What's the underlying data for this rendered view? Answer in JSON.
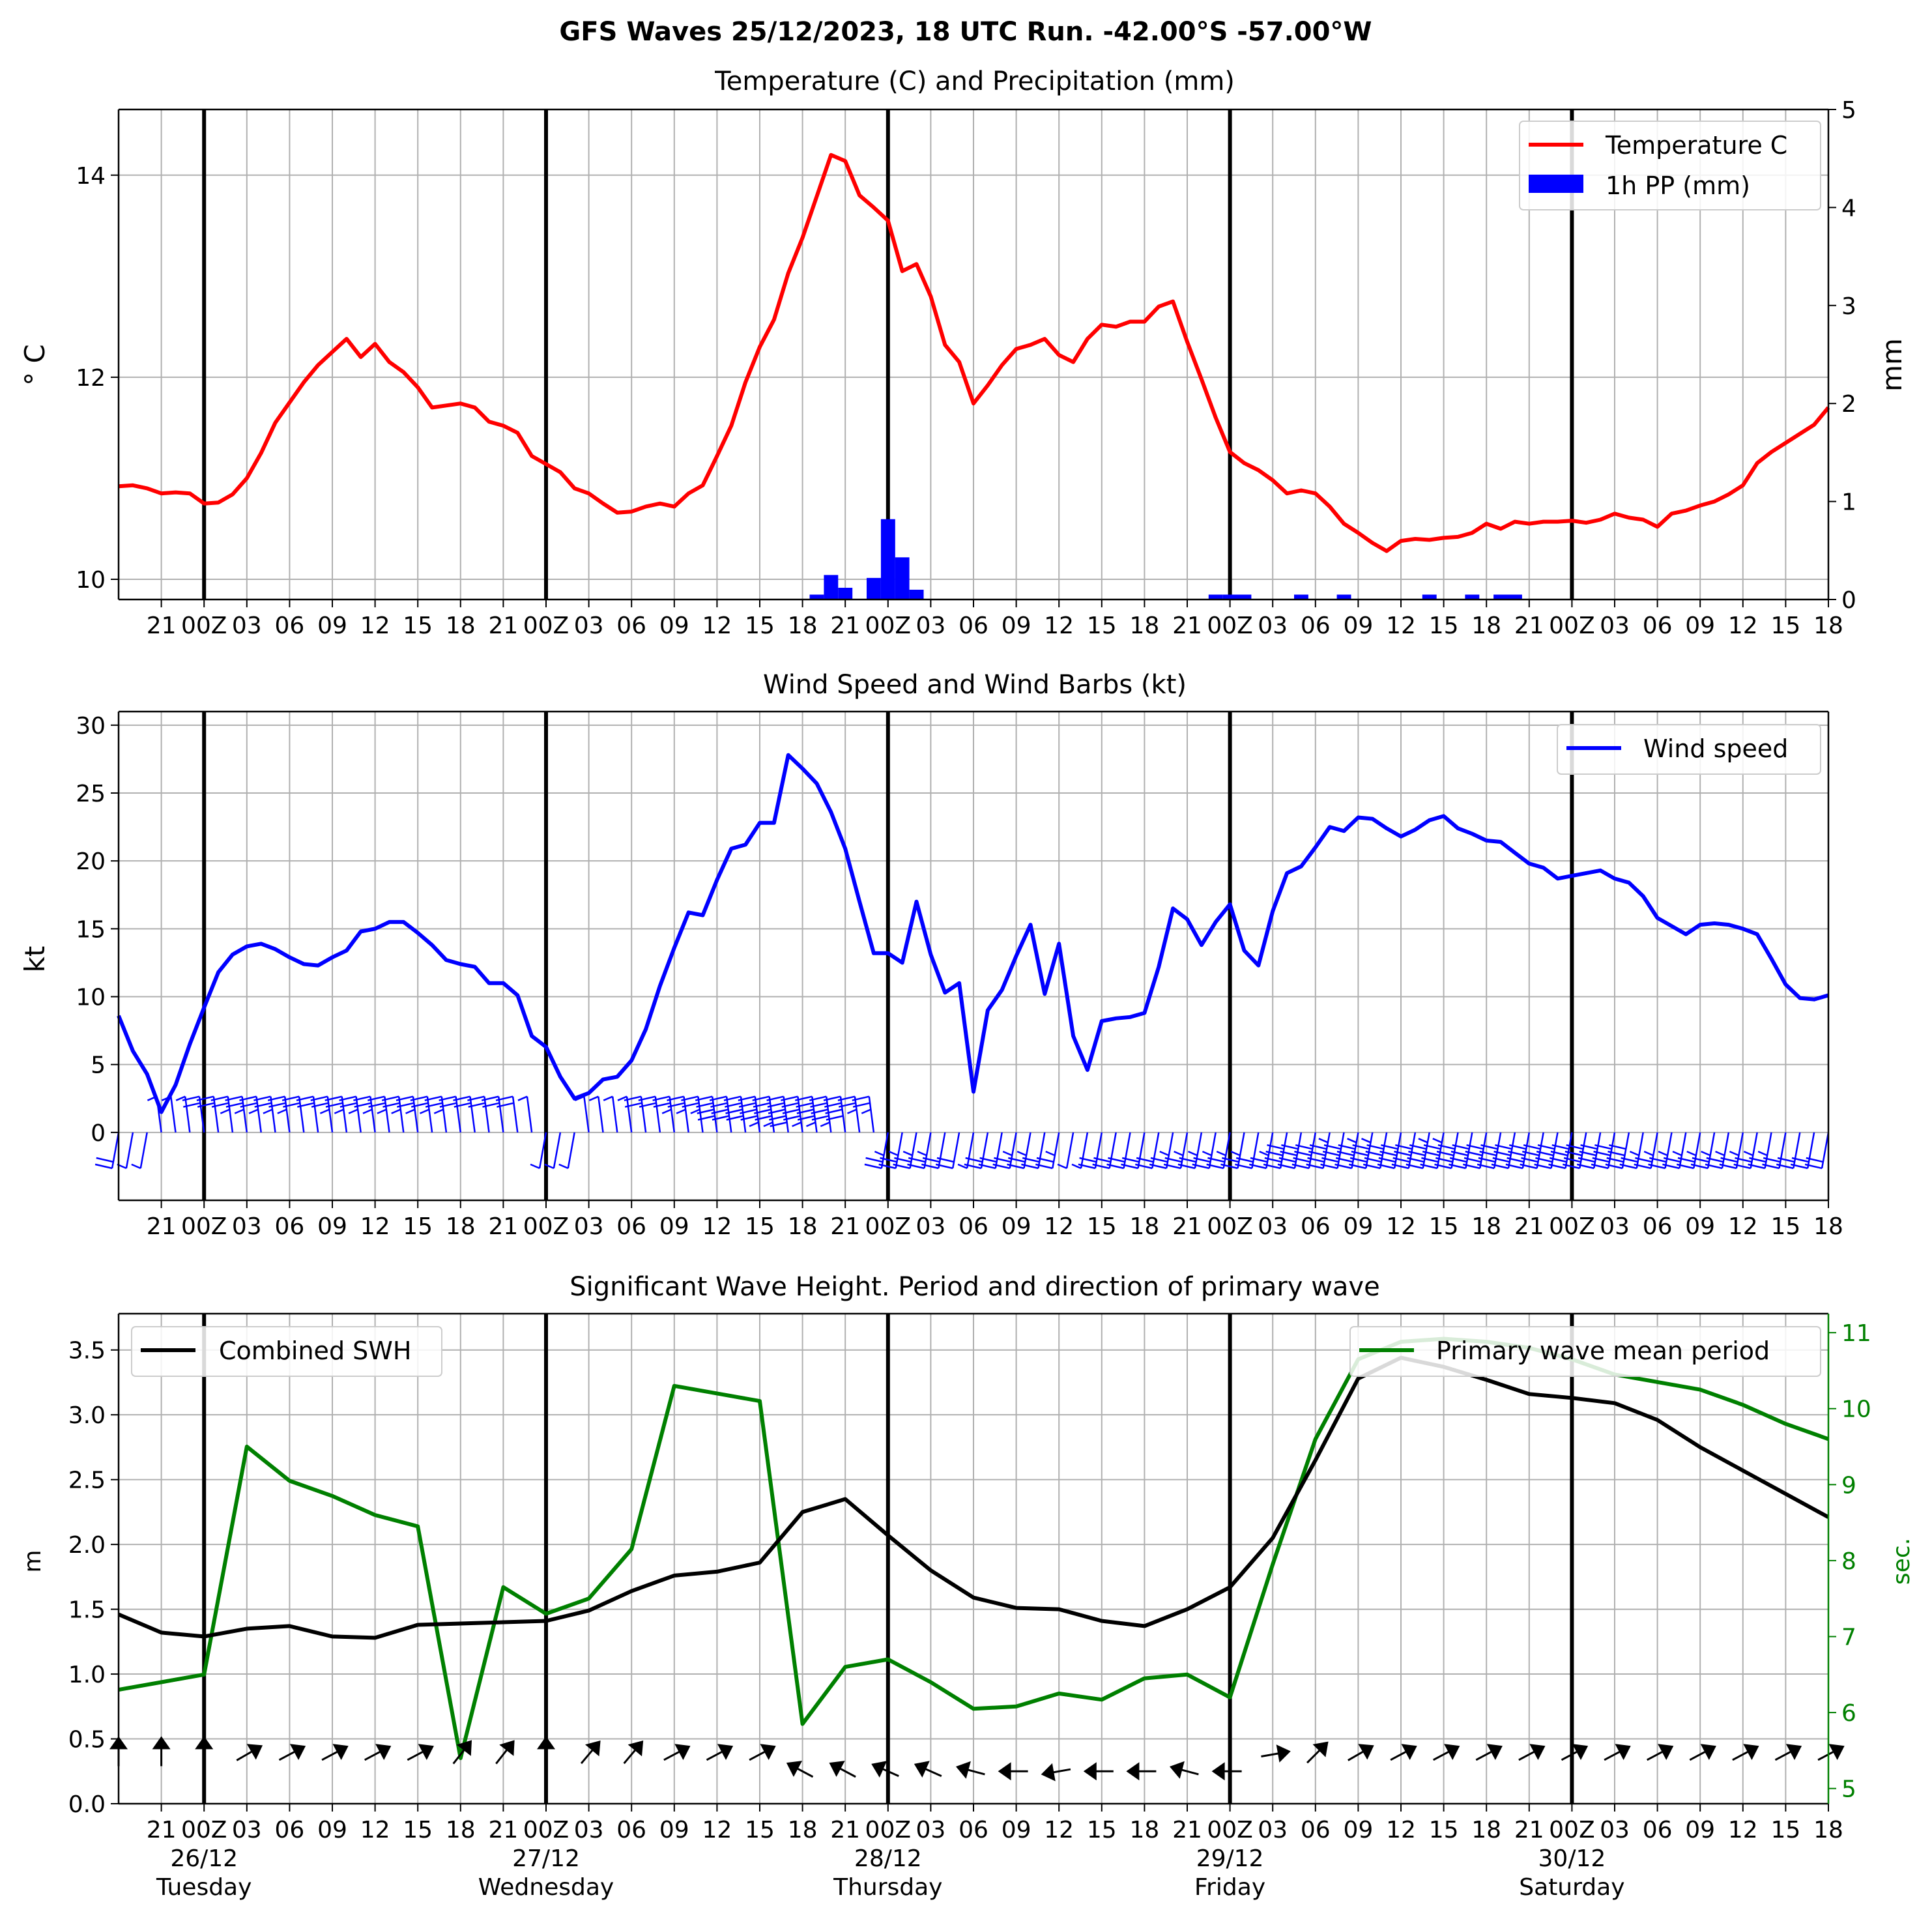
{
  "suptitle": "GFS Waves 25/12/2023, 18 UTC Run. -42.00°S -57.00°W",
  "colors": {
    "temp": "#ff0000",
    "precip": "#0000ff",
    "wind": "#0000ff",
    "swh": "#000000",
    "period": "#008000",
    "grid": "#b0b0b0"
  },
  "chart_data": [
    {
      "type": "line",
      "title": "Temperature (C) and Precipitation (mm)",
      "ylabel": "$^\\circ$C",
      "ylabel_display": "° C",
      "y2label": "mm",
      "xlim": [
        -6,
        114
      ],
      "ylim": [
        9.8,
        14.65
      ],
      "y2lim": [
        0,
        5
      ],
      "yticks": [
        10,
        12,
        14
      ],
      "y2ticks": [
        0,
        1,
        2,
        3,
        4,
        5
      ],
      "grid": true,
      "legend": {
        "placement": "top-right",
        "entries": [
          "Temperature C",
          "1h PP (mm)"
        ]
      },
      "x_tick_labels": [
        "21",
        "00Z",
        "03",
        "06",
        "09",
        "12",
        "15",
        "18",
        "21",
        "00Z",
        "03",
        "06",
        "09",
        "12",
        "15",
        "18",
        "21",
        "00Z",
        "03",
        "06",
        "09",
        "12",
        "15",
        "18",
        "21",
        "00Z",
        "03",
        "06",
        "09",
        "12",
        "15",
        "18",
        "21",
        "00Z",
        "03",
        "06",
        "09",
        "12",
        "15",
        "18"
      ],
      "series": [
        {
          "name": "Temperature C",
          "x": [
            -6,
            -5,
            -4,
            -3,
            -2,
            -1,
            0,
            1,
            2,
            3,
            4,
            5,
            6,
            7,
            8,
            9,
            10,
            11,
            12,
            13,
            14,
            15,
            16,
            17,
            18,
            19,
            20,
            21,
            22,
            23,
            24,
            25,
            26,
            27,
            28,
            29,
            30,
            31,
            32,
            33,
            34,
            35,
            36,
            37,
            38,
            39,
            40,
            41,
            42,
            43,
            44,
            45,
            46,
            47,
            48,
            49,
            50,
            51,
            52,
            53,
            54,
            55,
            56,
            57,
            58,
            59,
            60,
            61,
            62,
            63,
            64,
            65,
            66,
            67,
            68,
            69,
            70,
            71,
            72,
            73,
            74,
            75,
            76,
            77,
            78,
            79,
            80,
            81,
            82,
            83,
            84,
            85,
            86,
            87,
            88,
            89,
            90,
            91,
            92,
            93,
            94,
            95,
            96,
            97,
            98,
            99,
            100,
            101,
            102,
            103,
            104,
            105,
            106,
            107,
            108,
            109,
            110,
            111,
            112,
            113,
            114
          ],
          "values": [
            10.92,
            10.93,
            10.9,
            10.85,
            10.86,
            10.85,
            10.75,
            10.76,
            10.84,
            11.0,
            11.25,
            11.55,
            11.75,
            11.95,
            12.12,
            12.25,
            12.38,
            12.2,
            12.33,
            12.15,
            12.05,
            11.9,
            11.7,
            11.72,
            11.74,
            11.7,
            11.56,
            11.52,
            11.45,
            11.22,
            11.14,
            11.06,
            10.9,
            10.85,
            10.75,
            10.66,
            10.67,
            10.72,
            10.75,
            10.72,
            10.85,
            10.93,
            11.22,
            11.52,
            11.95,
            12.3,
            12.57,
            13.03,
            13.38,
            13.79,
            14.2,
            14.14,
            13.8,
            13.68,
            13.55,
            13.05,
            13.12,
            12.8,
            12.32,
            12.15,
            11.74,
            11.92,
            12.12,
            12.28,
            12.32,
            12.38,
            12.22,
            12.15,
            12.38,
            12.52,
            12.5,
            12.55,
            12.55,
            12.7,
            12.75,
            12.35,
            11.98,
            11.6,
            11.26,
            11.15,
            11.08,
            10.98,
            10.85,
            10.88,
            10.85,
            10.72,
            10.55,
            10.46,
            10.36,
            10.28,
            10.38,
            10.4,
            10.39,
            10.41,
            10.42,
            10.46,
            10.55,
            10.5,
            10.57,
            10.55,
            10.57,
            10.57,
            10.58,
            10.56,
            10.59,
            10.65,
            10.61,
            10.59,
            10.52,
            10.65,
            10.68,
            10.73,
            10.77,
            10.84,
            10.93,
            11.15,
            11.26,
            11.35,
            11.44,
            11.53,
            11.7
          ]
        },
        {
          "name": "1h PP (mm)",
          "type": "bar",
          "x": [
            43,
            44,
            45,
            47,
            48,
            49,
            50,
            71,
            72,
            73,
            77,
            80,
            86,
            89,
            91,
            92
          ],
          "values": [
            0.05,
            0.25,
            0.12,
            0.22,
            0.82,
            0.43,
            0.1,
            0.05,
            0.05,
            0.05,
            0.05,
            0.05,
            0.05,
            0.05,
            0.05,
            0.05
          ]
        }
      ]
    },
    {
      "type": "line",
      "title": "Wind Speed and Wind Barbs (kt)",
      "ylabel": "kt",
      "xlim": [
        -6,
        114
      ],
      "ylim": [
        -5,
        31
      ],
      "yticks": [
        0,
        5,
        10,
        15,
        20,
        25,
        30
      ],
      "grid": true,
      "legend": {
        "placement": "top-right",
        "entries": [
          "Wind speed"
        ]
      },
      "x_tick_labels": [
        "21",
        "00Z",
        "03",
        "06",
        "09",
        "12",
        "15",
        "18",
        "21",
        "00Z",
        "03",
        "06",
        "09",
        "12",
        "15",
        "18",
        "21",
        "00Z",
        "03",
        "06",
        "09",
        "12",
        "15",
        "18",
        "21",
        "00Z",
        "03",
        "06",
        "09",
        "12",
        "15",
        "18",
        "21",
        "00Z",
        "03",
        "06",
        "09",
        "12",
        "15",
        "18"
      ],
      "series": [
        {
          "name": "Wind speed",
          "x": [
            -6,
            -5,
            -4,
            -3,
            -2,
            -1,
            0,
            1,
            2,
            3,
            4,
            5,
            6,
            7,
            8,
            9,
            10,
            11,
            12,
            13,
            14,
            15,
            16,
            17,
            18,
            19,
            20,
            21,
            22,
            23,
            24,
            25,
            26,
            27,
            28,
            29,
            30,
            31,
            32,
            33,
            34,
            35,
            36,
            37,
            38,
            39,
            40,
            41,
            42,
            43,
            44,
            45,
            46,
            47,
            48,
            49,
            50,
            51,
            52,
            53,
            54,
            55,
            56,
            57,
            58,
            59,
            60,
            61,
            62,
            63,
            64,
            65,
            66,
            67,
            68,
            69,
            70,
            71,
            72,
            73,
            74,
            75,
            76,
            77,
            78,
            79,
            80,
            81,
            82,
            83,
            84,
            85,
            86,
            87,
            88,
            89,
            90,
            91,
            92,
            93,
            94,
            95,
            96,
            97,
            98,
            99,
            100,
            101,
            102,
            103,
            104,
            105,
            106,
            107,
            108,
            109,
            110,
            111,
            112,
            113,
            114
          ],
          "values": [
            8.6,
            6.0,
            4.3,
            1.5,
            3.5,
            6.5,
            9.2,
            11.8,
            13.1,
            13.7,
            13.9,
            13.5,
            12.9,
            12.4,
            12.3,
            12.9,
            13.4,
            14.8,
            15.0,
            15.5,
            15.5,
            14.7,
            13.8,
            12.7,
            12.4,
            12.2,
            11.0,
            11.0,
            10.1,
            7.1,
            6.3,
            4.1,
            2.5,
            2.9,
            3.9,
            4.1,
            5.3,
            7.6,
            10.8,
            13.6,
            16.2,
            16.0,
            18.6,
            20.9,
            21.2,
            22.8,
            22.8,
            27.8,
            26.8,
            25.7,
            23.6,
            20.9,
            17.0,
            13.2,
            13.2,
            12.5,
            17.0,
            13.1,
            10.3,
            11.0,
            3.0,
            9.0,
            10.5,
            13.0,
            15.3,
            10.2,
            13.9,
            7.1,
            4.6,
            8.2,
            8.4,
            8.5,
            8.8,
            12.2,
            16.5,
            15.7,
            13.8,
            15.5,
            16.8,
            13.4,
            12.3,
            16.3,
            19.1,
            19.6,
            21.0,
            22.5,
            22.2,
            23.2,
            23.1,
            22.4,
            21.8,
            22.3,
            23.0,
            23.3,
            22.4,
            22.0,
            21.5,
            21.4,
            20.6,
            19.8,
            19.5,
            18.7,
            18.9,
            19.1,
            19.3,
            18.7,
            18.4,
            17.4,
            15.8,
            15.2,
            14.6,
            15.3,
            15.4,
            15.3,
            15.0,
            14.6,
            12.8,
            10.9,
            9.9,
            9.8,
            10.1
          ]
        }
      ]
    },
    {
      "type": "line",
      "title": "Significant Wave Height. Period and direction of primary wave",
      "ylabel": "m",
      "y2label": "sec.",
      "xlim": [
        -6,
        114
      ],
      "ylim": [
        0.0,
        3.78
      ],
      "y2lim": [
        4.8,
        11.25
      ],
      "yticks": [
        0.0,
        0.5,
        1.0,
        1.5,
        2.0,
        2.5,
        3.0,
        3.5
      ],
      "y2ticks": [
        5,
        6,
        7,
        8,
        9,
        10,
        11
      ],
      "grid": true,
      "legend_left": {
        "placement": "top-left",
        "entries": [
          "Combined SWH"
        ]
      },
      "legend_right": {
        "placement": "top-right",
        "entries": [
          "Primary wave mean period"
        ]
      },
      "x_tick_labels": [
        "21",
        "00Z",
        "03",
        "06",
        "09",
        "12",
        "15",
        "18",
        "21",
        "00Z",
        "03",
        "06",
        "09",
        "12",
        "15",
        "18",
        "21",
        "00Z",
        "03",
        "06",
        "09",
        "12",
        "15",
        "18",
        "21",
        "00Z",
        "03",
        "06",
        "09",
        "12",
        "15",
        "18",
        "21",
        "00Z",
        "03",
        "06",
        "09",
        "12",
        "15",
        "18"
      ],
      "date_labels": [
        {
          "date": "26/12",
          "day": "Tuesday"
        },
        {
          "date": "27/12",
          "day": "Wednesday"
        },
        {
          "date": "28/12",
          "day": "Thursday"
        },
        {
          "date": "29/12",
          "day": "Friday"
        },
        {
          "date": "30/12",
          "day": "Saturday"
        }
      ],
      "series": [
        {
          "name": "Combined SWH",
          "x": [
            -6,
            -3,
            0,
            3,
            6,
            9,
            12,
            15,
            18,
            21,
            24,
            27,
            30,
            33,
            36,
            39,
            42,
            45,
            48,
            51,
            54,
            57,
            60,
            63,
            66,
            69,
            72,
            75,
            78,
            81,
            84,
            87,
            90,
            93,
            96,
            99,
            102,
            105,
            108,
            111,
            114
          ],
          "values": [
            1.46,
            1.32,
            1.29,
            1.35,
            1.37,
            1.29,
            1.28,
            1.38,
            1.39,
            1.4,
            1.41,
            1.49,
            1.64,
            1.76,
            1.79,
            1.86,
            2.25,
            2.35,
            2.07,
            1.8,
            1.59,
            1.51,
            1.5,
            1.41,
            1.37,
            1.5,
            1.67,
            2.05,
            2.65,
            3.28,
            3.44,
            3.37,
            3.27,
            3.16,
            3.13,
            3.09,
            2.96,
            2.75,
            2.57,
            2.39,
            2.21
          ]
        },
        {
          "name": "Primary wave mean period",
          "x": [
            -6,
            -3,
            0,
            3,
            6,
            9,
            12,
            15,
            18,
            21,
            24,
            27,
            30,
            33,
            36,
            39,
            42,
            45,
            48,
            51,
            54,
            57,
            60,
            63,
            66,
            69,
            72,
            75,
            78,
            81,
            84,
            87,
            90,
            93,
            96,
            99,
            102,
            105,
            108,
            111,
            114
          ],
          "values": [
            6.3,
            6.4,
            6.5,
            9.5,
            9.05,
            8.85,
            8.6,
            8.45,
            5.4,
            7.65,
            7.3,
            7.5,
            8.15,
            10.3,
            10.2,
            10.1,
            5.85,
            6.6,
            6.7,
            6.4,
            6.05,
            6.08,
            6.25,
            6.17,
            6.45,
            6.5,
            6.2,
            7.95,
            9.6,
            10.65,
            10.88,
            10.92,
            10.88,
            10.8,
            10.65,
            10.45,
            10.35,
            10.25,
            10.05,
            9.8,
            9.6
          ]
        },
        {
          "name": "wave direction arrows",
          "x": [
            -6,
            -3,
            0,
            3,
            6,
            9,
            12,
            15,
            18,
            21,
            24,
            27,
            30,
            33,
            36,
            39,
            42,
            45,
            48,
            51,
            54,
            57,
            60,
            63,
            66,
            69,
            72,
            75,
            78,
            81,
            84,
            87,
            90,
            93,
            96,
            99,
            102,
            105,
            108,
            111,
            114
          ],
          "direction_deg": [
            0,
            0,
            0,
            60,
            62,
            62,
            62,
            62,
            38,
            38,
            0,
            40,
            40,
            62,
            62,
            62,
            -62,
            -62,
            -66,
            -66,
            -75,
            -90,
            -100,
            -90,
            -90,
            -75,
            -90,
            80,
            45,
            60,
            62,
            62,
            62,
            62,
            62,
            62,
            62,
            62,
            62,
            62,
            62
          ]
        }
      ]
    }
  ]
}
